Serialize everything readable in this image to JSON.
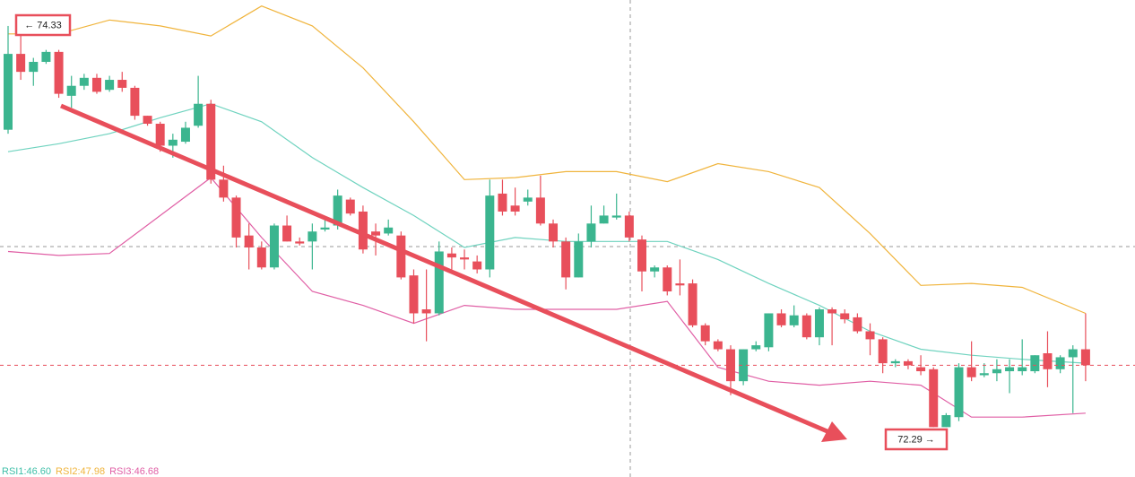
{
  "chart_data": {
    "type": "candlestick",
    "ylim": [
      72.04,
      74.43
    ],
    "up_color": "#3bb58f",
    "down_color": "#e84f5b",
    "open": [
      73.78,
      74.16,
      74.07,
      74.12,
      74.17,
      73.95,
      74.0,
      74.04,
      73.98,
      74.03,
      73.99,
      73.85,
      73.81,
      73.7,
      73.72,
      73.8,
      73.91,
      73.53,
      73.44,
      73.25,
      73.19,
      73.09,
      73.3,
      73.22,
      73.22,
      73.28,
      73.3,
      73.43,
      73.37,
      73.27,
      73.26,
      73.25,
      73.05,
      72.88,
      72.86,
      73.16,
      73.14,
      73.12,
      73.08,
      73.46,
      73.4,
      73.42,
      73.44,
      73.31,
      73.22,
      73.04,
      73.22,
      73.31,
      73.34,
      73.35,
      73.23,
      73.07,
      73.09,
      73.01,
      73.01,
      72.8,
      72.72,
      72.68,
      72.52,
      72.68,
      72.69,
      72.86,
      72.8,
      72.85,
      72.74,
      72.88,
      72.86,
      72.84,
      72.77,
      72.73,
      72.61,
      72.62,
      72.59,
      72.58,
      72.29,
      72.34,
      72.59,
      72.55,
      72.56,
      72.57,
      72.57,
      72.57,
      72.66,
      72.58,
      72.64,
      72.68
    ],
    "high": [
      74.3,
      74.33,
      74.14,
      74.18,
      74.18,
      74.05,
      74.06,
      74.06,
      74.05,
      74.07,
      74.0,
      73.85,
      73.82,
      73.76,
      73.82,
      74.05,
      73.93,
      73.6,
      73.45,
      73.31,
      73.22,
      73.31,
      73.35,
      73.24,
      73.31,
      73.33,
      73.48,
      73.44,
      73.4,
      73.31,
      73.33,
      73.27,
      73.08,
      73.08,
      73.22,
      73.19,
      73.18,
      73.15,
      73.53,
      73.53,
      73.49,
      73.48,
      73.55,
      73.33,
      73.24,
      73.26,
      73.4,
      73.4,
      73.46,
      73.37,
      73.25,
      73.1,
      73.1,
      73.13,
      73.03,
      72.81,
      72.73,
      72.7,
      72.68,
      72.72,
      72.86,
      72.88,
      72.9,
      72.86,
      72.89,
      72.89,
      72.88,
      72.86,
      72.81,
      72.74,
      72.63,
      72.63,
      72.65,
      72.59,
      72.36,
      72.61,
      72.72,
      72.61,
      72.63,
      72.63,
      72.73,
      72.65,
      72.77,
      72.65,
      72.7,
      72.86
    ],
    "low": [
      73.76,
      74.03,
      74.0,
      74.11,
      73.94,
      73.89,
      73.98,
      73.96,
      73.97,
      73.97,
      73.83,
      73.8,
      73.67,
      73.64,
      73.71,
      73.79,
      73.51,
      73.42,
      73.19,
      73.08,
      73.08,
      73.08,
      73.22,
      73.2,
      73.08,
      73.27,
      73.28,
      73.35,
      73.16,
      73.15,
      73.25,
      73.03,
      72.81,
      72.72,
      72.85,
      73.08,
      73.08,
      73.06,
      73.04,
      73.35,
      73.35,
      73.4,
      73.3,
      73.19,
      72.98,
      73.04,
      73.19,
      73.31,
      73.33,
      73.22,
      72.97,
      73.04,
      72.95,
      72.95,
      72.79,
      72.7,
      72.67,
      72.45,
      72.5,
      72.67,
      72.67,
      72.79,
      72.79,
      72.73,
      72.7,
      72.7,
      72.81,
      72.76,
      72.65,
      72.56,
      72.59,
      72.58,
      72.55,
      72.29,
      72.29,
      72.32,
      72.52,
      72.54,
      72.52,
      72.46,
      72.55,
      72.56,
      72.49,
      72.56,
      72.36,
      72.52
    ],
    "close": [
      74.16,
      74.07,
      74.12,
      74.17,
      73.96,
      74.0,
      74.04,
      73.97,
      74.03,
      73.99,
      73.85,
      73.81,
      73.7,
      73.73,
      73.79,
      73.91,
      73.53,
      73.44,
      73.24,
      73.19,
      73.09,
      73.3,
      73.22,
      73.21,
      73.27,
      73.29,
      73.45,
      73.36,
      73.18,
      73.25,
      73.29,
      73.04,
      72.86,
      72.86,
      73.17,
      73.14,
      73.13,
      73.08,
      73.45,
      73.37,
      73.37,
      73.44,
      73.31,
      73.22,
      73.04,
      73.22,
      73.31,
      73.35,
      73.35,
      73.24,
      73.07,
      73.09,
      72.97,
      73.0,
      72.8,
      72.72,
      72.68,
      72.52,
      72.68,
      72.7,
      72.86,
      72.8,
      72.85,
      72.74,
      72.88,
      72.86,
      72.83,
      72.77,
      72.73,
      72.61,
      72.62,
      72.6,
      72.57,
      72.29,
      72.35,
      72.59,
      72.54,
      72.56,
      72.58,
      72.59,
      72.59,
      72.65,
      72.58,
      72.64,
      72.68,
      72.6
    ],
    "bands": [
      {
        "color": "#f0b43c",
        "x": [
          0,
          4,
          8,
          12,
          16,
          20,
          24,
          28,
          32,
          36,
          40,
          44,
          48,
          52,
          56,
          60,
          64,
          68,
          72,
          76,
          80,
          85
        ],
        "values": [
          74.26,
          74.26,
          74.33,
          74.3,
          74.25,
          74.4,
          74.3,
          74.09,
          73.82,
          73.53,
          73.54,
          73.57,
          73.57,
          73.52,
          73.61,
          73.57,
          73.49,
          73.26,
          73.0,
          73.01,
          72.99,
          72.86
        ]
      },
      {
        "color": "#6fd3bf",
        "x": [
          0,
          4,
          8,
          12,
          16,
          20,
          24,
          28,
          32,
          36,
          40,
          44,
          48,
          52,
          56,
          60,
          64,
          68,
          72,
          76,
          80,
          85
        ],
        "values": [
          73.67,
          73.71,
          73.76,
          73.84,
          73.91,
          73.82,
          73.64,
          73.49,
          73.35,
          73.19,
          73.24,
          73.22,
          73.22,
          73.22,
          73.13,
          73.01,
          72.9,
          72.77,
          72.68,
          72.65,
          72.63,
          72.61
        ]
      },
      {
        "color": "#e05fa5",
        "x": [
          0,
          4,
          8,
          12,
          16,
          20,
          24,
          28,
          32,
          36,
          40,
          44,
          48,
          52,
          56,
          60,
          64,
          68,
          72,
          76,
          80,
          85
        ],
        "values": [
          73.17,
          73.15,
          73.16,
          73.35,
          73.54,
          73.24,
          72.97,
          72.9,
          72.81,
          72.9,
          72.88,
          72.88,
          72.88,
          72.92,
          72.59,
          72.52,
          72.5,
          72.52,
          72.5,
          72.34,
          72.34,
          72.36
        ]
      }
    ],
    "annotations": [
      {
        "text": "← 74.33"
      },
      {
        "text": "72.29 →"
      }
    ],
    "indicators": [
      {
        "text": "RSI1:46.60",
        "color": "#3fbfa8"
      },
      {
        "text": "RSI2:47.98",
        "color": "#f0b43c"
      },
      {
        "text": "RSI3:46.68",
        "color": "#e05fa5"
      }
    ]
  }
}
